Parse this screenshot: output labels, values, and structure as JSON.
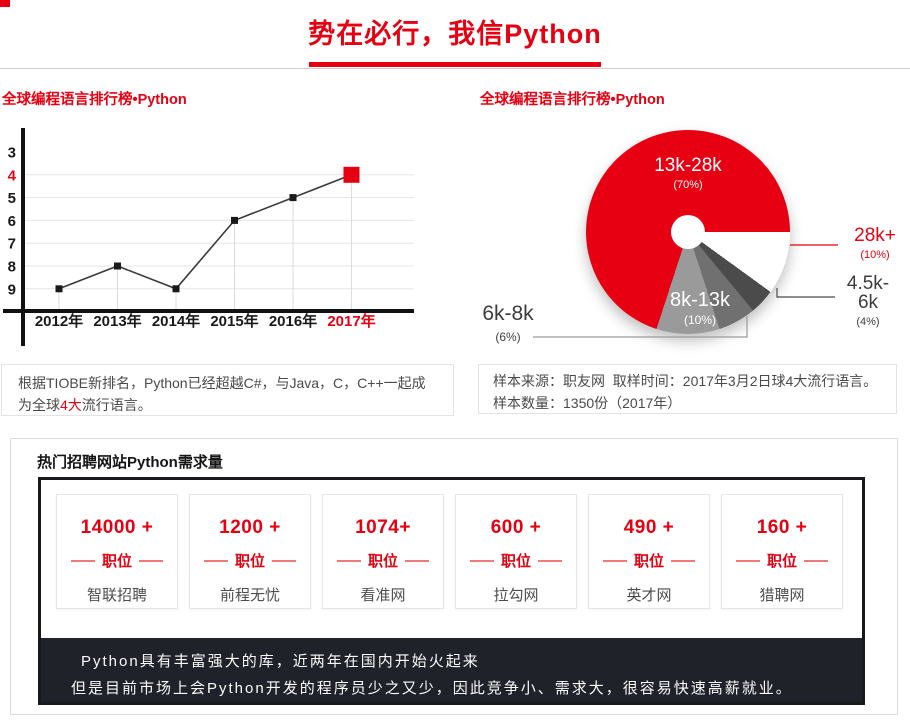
{
  "page": {
    "title": "势在必行，我信Python",
    "accent_color": "#e60012"
  },
  "chart_data": [
    {
      "type": "line",
      "title": "全球编程语言排行榜•Python",
      "categories": [
        "2012年",
        "2013年",
        "2014年",
        "2015年",
        "2016年",
        "2017年"
      ],
      "values": [
        9,
        8,
        9,
        6,
        5,
        4
      ],
      "y_ticks": [
        3,
        4,
        5,
        6,
        7,
        8,
        9
      ],
      "y_axis_inverted": true,
      "highlight_category": "2017年",
      "highlight_value": 4,
      "highlight_color": "#e60012",
      "line_color": "#3a3a3a",
      "marker_color": "#1a1a1a",
      "grid": true
    },
    {
      "type": "pie",
      "title": "全球编程语言排行榜•Python",
      "start_angle_deg": 90,
      "donut_hole": true,
      "slices": [
        {
          "label": "28k+",
          "pct": 10,
          "pct_label": "(10%)",
          "color": "#ffffff",
          "label_color": "#e60012",
          "label_position": "outside-right"
        },
        {
          "label": "4.5k-6k",
          "pct": 4,
          "pct_label": "(4%)",
          "color": "#4b4b4b",
          "label_color": "#3d3d3d",
          "label_position": "outside-right"
        },
        {
          "label": "6k-8k",
          "pct": 6,
          "pct_label": "(6%)",
          "color": "#707070",
          "label_color": "#3d3d3d",
          "label_position": "outside-left"
        },
        {
          "label": "8k-13k",
          "pct": 10,
          "pct_label": "(10%)",
          "color": "#9a9a9a",
          "label_color": "#ffffff",
          "label_position": "inside"
        },
        {
          "label": "13k-28k",
          "pct": 70,
          "pct_label": "(70%)",
          "color": "#e60012",
          "label_color": "#ffffff",
          "label_position": "inside"
        }
      ]
    }
  ],
  "notes": {
    "left": {
      "part1": "根据TIOBE新排名，Python已经超越C#，与Java，C，C++一起成为全球",
      "highlight": "4大",
      "part2": "流行语言。"
    },
    "right": {
      "line1": "样本来源：职友网  取样时间：2017年3月2日球4大流行语言。",
      "line2": "样本数量：1350份（2017年）"
    }
  },
  "jobs": {
    "header": "热门招聘网站Python需求量",
    "panel_bg": "#1f2228",
    "cards": [
      {
        "count": "14000 +",
        "unit": "职位",
        "site": "智联招聘"
      },
      {
        "count": "1200 +",
        "unit": "职位",
        "site": "前程无忧"
      },
      {
        "count": "1074+",
        "unit": "职位",
        "site": "看准网"
      },
      {
        "count": "600 +",
        "unit": "职位",
        "site": "拉勾网"
      },
      {
        "count": "490 +",
        "unit": "职位",
        "site": "英才网"
      },
      {
        "count": "160 +",
        "unit": "职位",
        "site": "猎聘网"
      }
    ],
    "footer_lines": [
      "Python具有丰富强大的库，近两年在国内开始火起来",
      "但是目前市场上会Python开发的程序员少之又少，因此竞争小、需求大，很容易快速高薪就业。"
    ]
  }
}
